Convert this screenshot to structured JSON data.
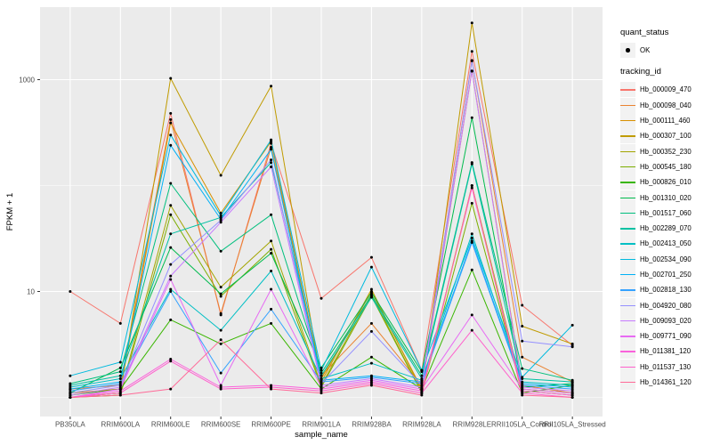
{
  "figure": {
    "y_axis": {
      "title": "FPKM + 1",
      "ticks": [
        {
          "label": "1000",
          "value": 1000
        },
        {
          "label": "10",
          "value": 10
        }
      ]
    },
    "x_axis": {
      "title": "sample_name"
    },
    "legend": {
      "quant": {
        "title": "quant_status",
        "items": [
          {
            "label": "OK"
          }
        ]
      },
      "tracking": {
        "title": "tracking_id"
      }
    },
    "colors": {
      "panel_bg": "#EBEBEB",
      "grid": "#FFFFFF",
      "tick_mark": "#333333",
      "tick_label": "#4D4D4D",
      "axis_title": "#000000",
      "point": "#000000",
      "legend_key_bg": "#F2F2F2"
    }
  },
  "chart_data": {
    "type": "line",
    "title": "",
    "xlabel": "sample_name",
    "ylabel": "FPKM + 1",
    "y_scale": "log10",
    "ylim": [
      0.9,
      4900
    ],
    "y_major_breaks": [
      10,
      1000
    ],
    "y_minor_breaks": [
      1,
      100
    ],
    "grid": true,
    "legend_position": "right",
    "point_marker": "black-dot",
    "categories": [
      "PB350LA",
      "RRIM600LA",
      "RRIM600LE",
      "RRIM600SE",
      "RRIM600PE",
      "RRIM901LA",
      "RRIM928BA",
      "RRIM928LA",
      "RRIM928LE",
      "RRII105LA_Control",
      "RRII105LA_Stressed"
    ],
    "series": [
      {
        "name": "Hb_000009_470",
        "color": "#F8766D",
        "values": [
          10,
          5,
          480,
          6,
          250,
          8.6,
          21,
          1.8,
          1850,
          7.4,
          3.1
        ]
      },
      {
        "name": "Hb_000098_040",
        "color": "#EA8331",
        "values": [
          1.2,
          1.3,
          420,
          6.2,
          230,
          1.6,
          5,
          1.3,
          1520,
          2.4,
          1.4
        ]
      },
      {
        "name": "Hb_000111_460",
        "color": "#D89000",
        "values": [
          1.1,
          1.2,
          390,
          55,
          260,
          1.5,
          10,
          1.2,
          1210,
          1.3,
          1.1
        ]
      },
      {
        "name": "Hb_000307_100",
        "color": "#C09B00",
        "values": [
          1,
          1.1,
          1030,
          125,
          870,
          1.4,
          10.5,
          1.15,
          3430,
          4.7,
          3.2
        ]
      },
      {
        "name": "Hb_000352_230",
        "color": "#A3A500",
        "values": [
          1,
          1.1,
          65,
          11,
          30,
          1.3,
          9.5,
          1.1,
          100,
          1.2,
          1.1
        ]
      },
      {
        "name": "Hb_000545_180",
        "color": "#7CAE00",
        "values": [
          1,
          1.05,
          53,
          9,
          25,
          1.25,
          9,
          1.1,
          68,
          1.15,
          1.05
        ]
      },
      {
        "name": "Hb_000826_010",
        "color": "#39B600",
        "values": [
          1.05,
          1.2,
          5.4,
          3.2,
          5,
          1.2,
          2.4,
          1.2,
          16,
          1.1,
          1.3
        ]
      },
      {
        "name": "Hb_001310_020",
        "color": "#00BB4E",
        "values": [
          1.1,
          1.9,
          26,
          9.5,
          23,
          1.9,
          9.8,
          1.75,
          437,
          1.25,
          1.35
        ]
      },
      {
        "name": "Hb_001517_060",
        "color": "#00BF7D",
        "values": [
          1.35,
          1.75,
          105,
          24,
          53,
          1.7,
          9.2,
          1.6,
          165,
          1.87,
          1.45
        ]
      },
      {
        "name": "Hb_002289_070",
        "color": "#00C1A3",
        "values": [
          1.3,
          1.6,
          35,
          50,
          165,
          1.6,
          8.8,
          1.5,
          160,
          1.5,
          1.4
        ]
      },
      {
        "name": "Hb_002413_050",
        "color": "#00BFC4",
        "values": [
          1.25,
          1.5,
          10.5,
          4.3,
          15.6,
          1.5,
          2.1,
          1.45,
          35,
          1.4,
          1.3
        ]
      },
      {
        "name": "Hb_002534_090",
        "color": "#00BADE",
        "values": [
          1.6,
          2.15,
          300,
          52,
          270,
          1.8,
          17,
          1.8,
          32,
          1.55,
          4.8
        ]
      },
      {
        "name": "Hb_002701_250",
        "color": "#00B0F6",
        "values": [
          1.2,
          1.4,
          240,
          48,
          220,
          1.45,
          1.6,
          1.4,
          30,
          1.35,
          1.25
        ]
      },
      {
        "name": "Hb_002818_130",
        "color": "#35A2FF",
        "values": [
          1.15,
          1.35,
          10,
          1.7,
          6.8,
          1.4,
          1.55,
          1.35,
          29,
          1.3,
          1.2
        ]
      },
      {
        "name": "Hb_004920_080",
        "color": "#9590FF",
        "values": [
          1.1,
          1.3,
          18,
          47,
          175,
          1.35,
          4.2,
          1.3,
          1500,
          3.4,
          3.0
        ]
      },
      {
        "name": "Hb_009093_020",
        "color": "#C77CFF",
        "values": [
          1.05,
          1.25,
          14,
          45,
          150,
          1.3,
          1.5,
          1.25,
          1200,
          1.25,
          1.15
        ]
      },
      {
        "name": "Hb_009771_090",
        "color": "#E76BF3",
        "values": [
          1,
          1.2,
          13,
          1.3,
          10.5,
          1.25,
          1.45,
          1.2,
          6,
          1.2,
          1.1
        ]
      },
      {
        "name": "Hb_011381_120",
        "color": "#FA62DB",
        "values": [
          1,
          1.15,
          2.3,
          1.25,
          1.3,
          1.2,
          1.4,
          1.15,
          95,
          1.15,
          1.05
        ]
      },
      {
        "name": "Hb_011537_130",
        "color": "#FF61CC",
        "values": [
          1,
          1.1,
          2.2,
          1.2,
          1.25,
          1.15,
          1.35,
          1.1,
          4.3,
          1.1,
          1
        ]
      },
      {
        "name": "Hb_014361_120",
        "color": "#FF6A98",
        "values": [
          1,
          1.05,
          1.2,
          3.5,
          1.2,
          1.1,
          1.3,
          1.05,
          100,
          1.05,
          1
        ]
      }
    ]
  }
}
